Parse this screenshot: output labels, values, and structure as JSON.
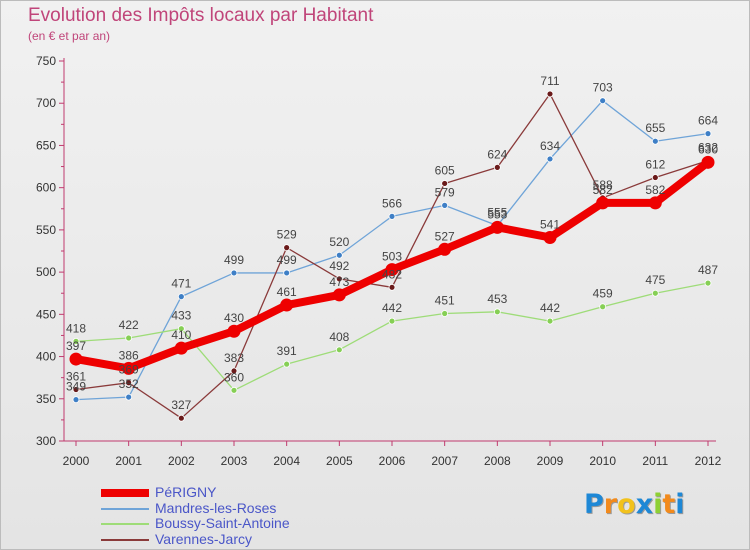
{
  "chart_data": {
    "type": "line",
    "title": "Evolution des Impôts locaux par Habitant",
    "subtitle": "(en € et par an)",
    "xlabel": "",
    "ylabel": "",
    "x": [
      "2000",
      "2001",
      "2002",
      "2003",
      "2004",
      "2005",
      "2006",
      "2007",
      "2008",
      "2009",
      "2010",
      "2011",
      "2012"
    ],
    "ylim": [
      300,
      750
    ],
    "yticks": [
      300,
      350,
      400,
      450,
      500,
      550,
      600,
      650,
      700,
      750
    ],
    "grid": false,
    "legend_position": "bottom-left",
    "series": [
      {
        "name": "Mandres-les-Roses",
        "color": "#6fa4d8",
        "marker": "#3e7fc6",
        "values": [
          349,
          352,
          471,
          499,
          499,
          520,
          566,
          579,
          555,
          634,
          703,
          655,
          664
        ]
      },
      {
        "name": "Boussy-Saint-Antoine",
        "color": "#9edc78",
        "marker": "#86cf55",
        "values": [
          418,
          422,
          433,
          360,
          391,
          408,
          442,
          451,
          453,
          442,
          459,
          475,
          487
        ]
      },
      {
        "name": "Varennes-Jarcy",
        "color": "#8a3a3a",
        "marker": "#6a1a1a",
        "values": [
          361,
          369,
          327,
          383,
          529,
          492,
          482,
          605,
          624,
          711,
          588,
          612,
          632
        ]
      },
      {
        "name": "PéRIGNY",
        "color": "#ee0000",
        "marker": "#ee0000",
        "values": [
          397,
          386,
          410,
          430,
          461,
          473,
          503,
          527,
          553,
          541,
          582,
          582,
          630
        ]
      }
    ]
  },
  "brand": {
    "letters": [
      "P",
      "r",
      "o",
      "x",
      "i",
      "t",
      "i"
    ],
    "colors": [
      "#1e88d6",
      "#f28a1c",
      "#f2c21c",
      "#1e88d6",
      "#8ed034",
      "#f28a1c",
      "#1e88d6"
    ]
  }
}
